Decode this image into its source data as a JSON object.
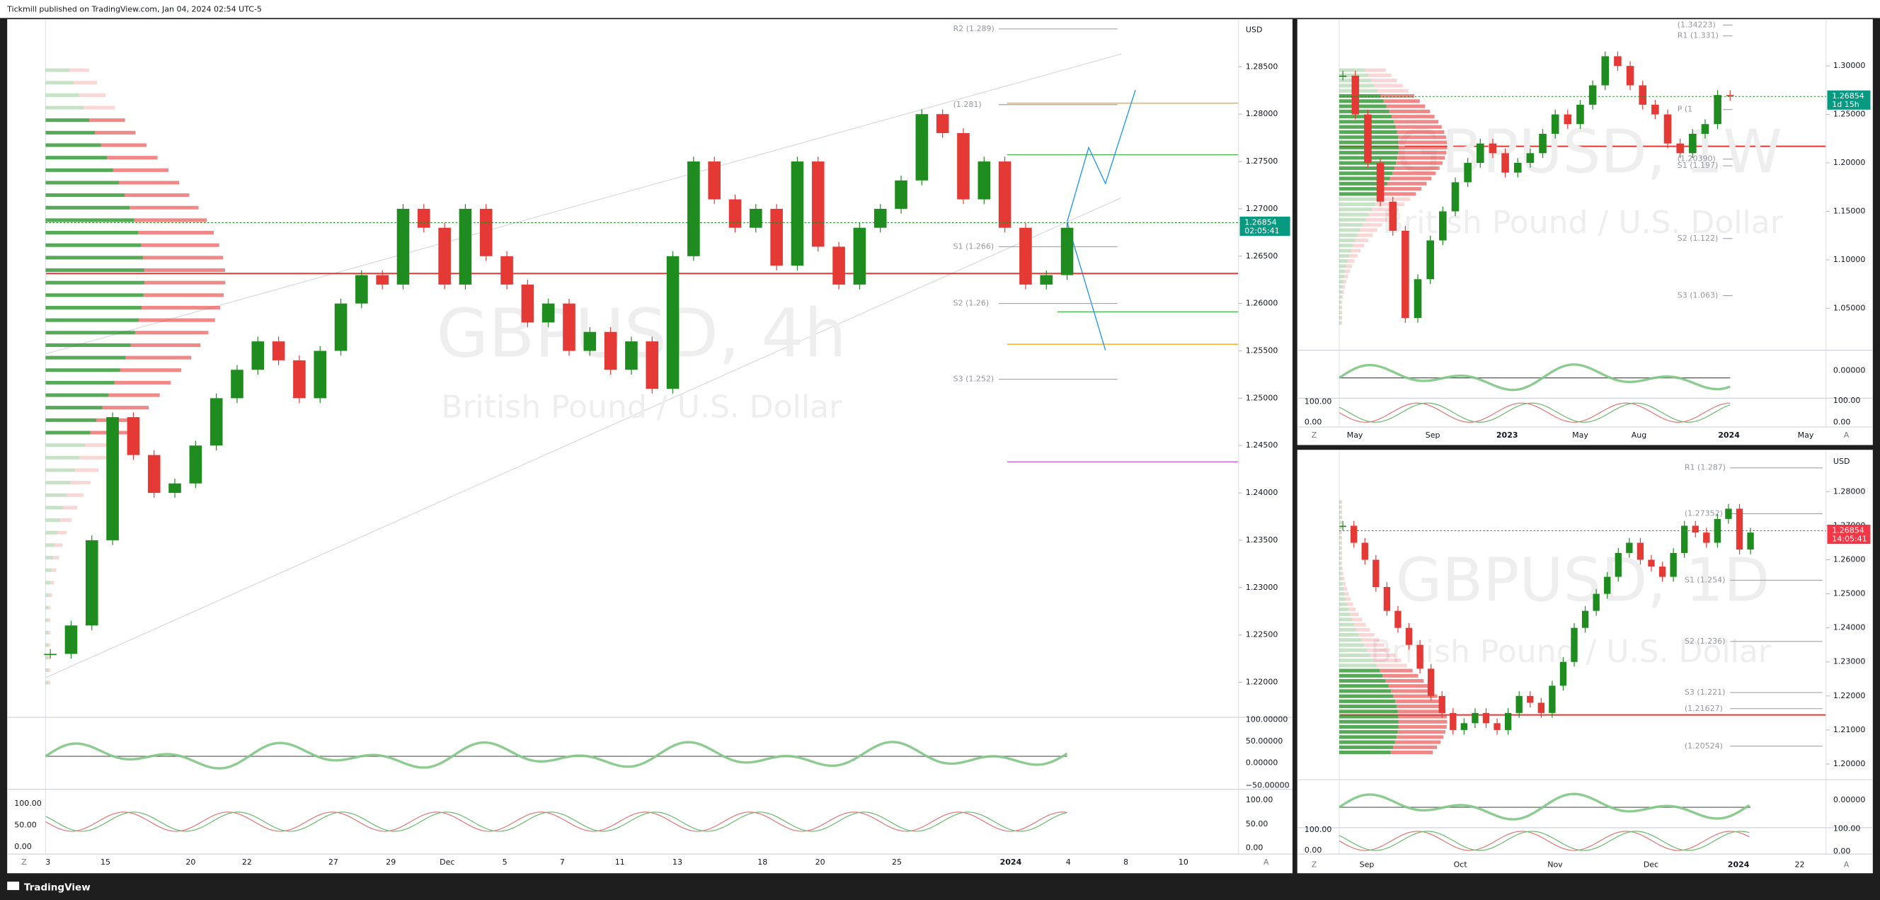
{
  "header": "Tickmill published on TradingView.com, Jan 04, 2024 02:54 UTC-5",
  "footer": "TradingView",
  "panels": [
    {
      "watermark": "GBPUSD, 4h",
      "subtitle": "British Pound / U.S. Dollar",
      "currency": "USD",
      "ylim": [
        1.2163,
        1.2899
      ],
      "price_ticks": [
        {
          "value": 1.285,
          "label": "1.28500"
        },
        {
          "value": 1.28,
          "label": "1.28000"
        },
        {
          "value": 1.275,
          "label": "1.27500"
        },
        {
          "value": 1.27,
          "label": "1.27000"
        },
        {
          "value": 1.265,
          "label": "1.26500"
        },
        {
          "value": 1.26,
          "label": "1.26000"
        },
        {
          "value": 1.255,
          "label": "1.25500"
        },
        {
          "value": 1.25,
          "label": "1.25000"
        },
        {
          "value": 1.245,
          "label": "1.24500"
        },
        {
          "value": 1.24,
          "label": "1.24000"
        },
        {
          "value": 1.235,
          "label": "1.23500"
        },
        {
          "value": 1.23,
          "label": "1.23000"
        },
        {
          "value": 1.225,
          "label": "1.22500"
        },
        {
          "value": 1.22,
          "label": "1.22000"
        }
      ],
      "levels": [
        {
          "label": "R2 (1.289)",
          "value": 1.289
        },
        {
          "label": "(1.281)",
          "value": 1.281
        },
        {
          "label": "S1 (1.266)",
          "value": 1.266
        },
        {
          "label": "S2 (1.26)",
          "value": 1.26
        },
        {
          "label": "S3 (1.252)",
          "value": 1.252
        }
      ],
      "closes": [
        1.223,
        1.226,
        1.235,
        1.248,
        1.244,
        1.24,
        1.241,
        1.245,
        1.25,
        1.253,
        1.256,
        1.254,
        1.25,
        1.255,
        1.26,
        1.263,
        1.262,
        1.27,
        1.268,
        1.262,
        1.27,
        1.265,
        1.262,
        1.258,
        1.26,
        1.255,
        1.257,
        1.253,
        1.256,
        1.251,
        1.265,
        1.275,
        1.271,
        1.268,
        1.27,
        1.264,
        1.275,
        1.266,
        1.262,
        1.268,
        1.27,
        1.273,
        1.28,
        1.278,
        1.271,
        1.275,
        1.268,
        1.262,
        1.263,
        1.268
      ],
      "last_price": {
        "value": 1.26854,
        "label": "1.26854"
      },
      "timer": "02:05:41",
      "time_labels": [
        "3",
        "15",
        "20",
        "22",
        "27",
        "29",
        "Dec",
        "5",
        "7",
        "11",
        "13",
        "18",
        "20",
        "25",
        "2024",
        "4",
        "8",
        "10"
      ],
      "osc_labels": [
        "100.00000",
        "50.00000",
        "0.00000",
        "−50.00000",
        "100.00",
        "50.00",
        "0.00"
      ],
      "left_labels": [
        "100.00",
        "50.00",
        "0.00"
      ],
      "corner_left": "Z",
      "corner_right": "A"
    },
    {
      "watermark": "GBPUSD, 1W",
      "subtitle": "British Pound / U.S. Dollar",
      "ylim": [
        1.0067,
        1.347
      ],
      "price_ticks": [
        {
          "value": 1.3,
          "label": "1.30000"
        },
        {
          "value": 1.25,
          "label": "1.25000"
        },
        {
          "value": 1.2,
          "label": "1.20000"
        },
        {
          "value": 1.15,
          "label": "1.15000"
        },
        {
          "value": 1.1,
          "label": "1.10000"
        },
        {
          "value": 1.05,
          "label": "1.05000"
        }
      ],
      "levels": [
        {
          "label": "(1.34223)",
          "value": 1.34223
        },
        {
          "label": "R1 (1.331)",
          "value": 1.331
        },
        {
          "label": "P (1",
          "value": 1.255
        },
        {
          "label": "(1.20390)",
          "value": 1.2039
        },
        {
          "label": "S1 (1.197)",
          "value": 1.197
        },
        {
          "label": "S2 (1.122)",
          "value": 1.122
        },
        {
          "label": "S3 (1.063)",
          "value": 1.063
        }
      ],
      "closes": [
        1.29,
        1.25,
        1.2,
        1.16,
        1.13,
        1.04,
        1.08,
        1.12,
        1.15,
        1.18,
        1.2,
        1.22,
        1.21,
        1.19,
        1.2,
        1.21,
        1.23,
        1.25,
        1.24,
        1.26,
        1.28,
        1.31,
        1.3,
        1.28,
        1.26,
        1.25,
        1.22,
        1.21,
        1.23,
        1.24,
        1.27,
        1.269
      ],
      "last_price": {
        "value": 1.26854,
        "label": "1.26854"
      },
      "timer": "1d 15h",
      "time_labels": [
        "May",
        "Sep",
        "2023",
        "May",
        "Aug",
        "2024",
        "May"
      ],
      "osc_labels": [
        "0.00000",
        "100.00",
        "0.00"
      ],
      "left_labels": [
        "100.00",
        "0.00"
      ],
      "corner_left": "Z",
      "corner_right": "A"
    },
    {
      "watermark": "GBPUSD, 1D",
      "subtitle": "British Pound / U.S. Dollar",
      "currency": "USD",
      "ylim": [
        1.1954,
        1.2916
      ],
      "price_ticks": [
        {
          "value": 1.28,
          "label": "1.28000"
        },
        {
          "value": 1.27,
          "label": "1.27000"
        },
        {
          "value": 1.26,
          "label": "1.26000"
        },
        {
          "value": 1.25,
          "label": "1.25000"
        },
        {
          "value": 1.24,
          "label": "1.24000"
        },
        {
          "value": 1.23,
          "label": "1.23000"
        },
        {
          "value": 1.22,
          "label": "1.22000"
        },
        {
          "value": 1.21,
          "label": "1.21000"
        },
        {
          "value": 1.2,
          "label": "1.20000"
        }
      ],
      "levels": [
        {
          "label": "R1 (1.287)",
          "value": 1.287
        },
        {
          "label": "(1.27352)",
          "value": 1.27352
        },
        {
          "label": "S1 (1.254)",
          "value": 1.254
        },
        {
          "label": "S2 (1.236)",
          "value": 1.236
        },
        {
          "label": "S3 (1.221)",
          "value": 1.221
        },
        {
          "label": "(1.21627)",
          "value": 1.21627
        },
        {
          "label": "(1.20524)",
          "value": 1.20524
        }
      ],
      "closes": [
        1.27,
        1.265,
        1.26,
        1.252,
        1.245,
        1.24,
        1.235,
        1.228,
        1.22,
        1.215,
        1.21,
        1.212,
        1.215,
        1.212,
        1.21,
        1.215,
        1.22,
        1.218,
        1.215,
        1.223,
        1.23,
        1.24,
        1.245,
        1.25,
        1.255,
        1.262,
        1.265,
        1.26,
        1.258,
        1.255,
        1.262,
        1.27,
        1.268,
        1.265,
        1.272,
        1.275,
        1.263,
        1.268
      ],
      "last_price": {
        "value": 1.26854,
        "label": "1.26854"
      },
      "timer": "14:05:41",
      "time_labels": [
        "Sep",
        "Oct",
        "Nov",
        "Dec",
        "2024",
        "22"
      ],
      "osc_labels": [
        "0.00000",
        "100.00",
        "0.00"
      ],
      "left_labels": [
        "100.00",
        "0.00"
      ],
      "corner_left": "Z",
      "corner_right": "A"
    }
  ]
}
